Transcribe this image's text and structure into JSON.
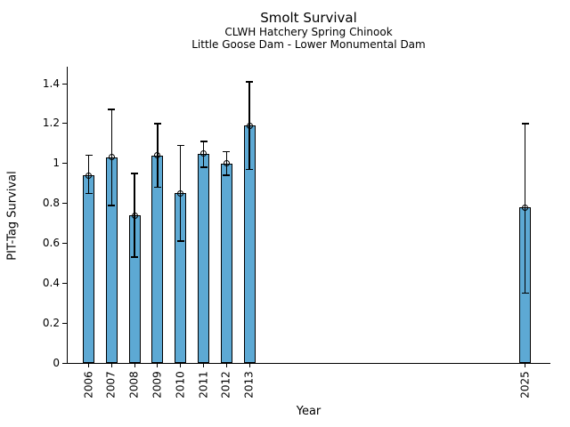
{
  "chart_data": {
    "type": "bar",
    "title": "Smolt Survival",
    "subtitle1": "CLWH Hatchery Spring Chinook",
    "subtitle2": "Little Goose Dam - Lower Monumental Dam",
    "xlabel": "Year",
    "ylabel": "PIT-Tag Survival",
    "ylim": [
      0,
      1.49
    ],
    "xlim_years": [
      2005,
      2026.2
    ],
    "yticks": [
      0,
      0.2,
      0.4,
      0.6,
      0.8,
      1,
      1.2,
      1.4
    ],
    "ytick_labels": [
      "0",
      "0.2",
      "0.4",
      "0.6",
      "0.8",
      "1",
      "1.2",
      "1.4"
    ],
    "grid": false,
    "legend": null,
    "bar_color": "#5da9d4",
    "bar_edge_color": "#000000",
    "error_color": "#000000",
    "marker": "open-circle",
    "points": [
      {
        "year": "2006",
        "value": 0.94,
        "err_lo": 0.85,
        "err_hi": 1.04
      },
      {
        "year": "2007",
        "value": 1.03,
        "err_lo": 0.79,
        "err_hi": 1.27
      },
      {
        "year": "2008",
        "value": 0.74,
        "err_lo": 0.53,
        "err_hi": 0.95
      },
      {
        "year": "2009",
        "value": 1.04,
        "err_lo": 0.88,
        "err_hi": 1.2
      },
      {
        "year": "2010",
        "value": 0.85,
        "err_lo": 0.61,
        "err_hi": 1.09
      },
      {
        "year": "2011",
        "value": 1.05,
        "err_lo": 0.98,
        "err_hi": 1.11
      },
      {
        "year": "2012",
        "value": 1.0,
        "err_lo": 0.94,
        "err_hi": 1.06
      },
      {
        "year": "2013",
        "value": 1.19,
        "err_lo": 0.97,
        "err_hi": 1.41
      },
      {
        "year": "2025",
        "value": 0.78,
        "err_lo": 0.35,
        "err_hi": 1.2
      }
    ]
  }
}
